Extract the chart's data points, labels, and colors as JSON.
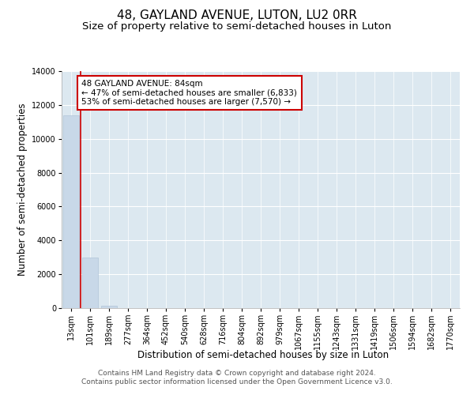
{
  "title": "48, GAYLAND AVENUE, LUTON, LU2 0RR",
  "subtitle": "Size of property relative to semi-detached houses in Luton",
  "xlabel": "Distribution of semi-detached houses by size in Luton",
  "ylabel": "Number of semi-detached properties",
  "categories": [
    "13sqm",
    "101sqm",
    "189sqm",
    "277sqm",
    "364sqm",
    "452sqm",
    "540sqm",
    "628sqm",
    "716sqm",
    "804sqm",
    "892sqm",
    "979sqm",
    "1067sqm",
    "1155sqm",
    "1243sqm",
    "1331sqm",
    "1419sqm",
    "1506sqm",
    "1594sqm",
    "1682sqm",
    "1770sqm"
  ],
  "values": [
    11400,
    3000,
    150,
    0,
    0,
    0,
    0,
    0,
    0,
    0,
    0,
    0,
    0,
    0,
    0,
    0,
    0,
    0,
    0,
    0,
    0
  ],
  "bar_color": "#c8d8e8",
  "bar_edge_color": "#b0c4d8",
  "background_color": "#ffffff",
  "plot_bg_color": "#dce8f0",
  "grid_color": "#ffffff",
  "ylim": [
    0,
    14000
  ],
  "red_line_x": 0.5,
  "annotation_text": "48 GAYLAND AVENUE: 84sqm\n← 47% of semi-detached houses are smaller (6,833)\n53% of semi-detached houses are larger (7,570) →",
  "annotation_box_color": "#ffffff",
  "annotation_border_color": "#cc0000",
  "red_line_color": "#cc0000",
  "footer_line1": "Contains HM Land Registry data © Crown copyright and database right 2024.",
  "footer_line2": "Contains public sector information licensed under the Open Government Licence v3.0.",
  "title_fontsize": 11,
  "subtitle_fontsize": 9.5,
  "axis_label_fontsize": 8.5,
  "tick_fontsize": 7,
  "annotation_fontsize": 7.5,
  "footer_fontsize": 6.5
}
